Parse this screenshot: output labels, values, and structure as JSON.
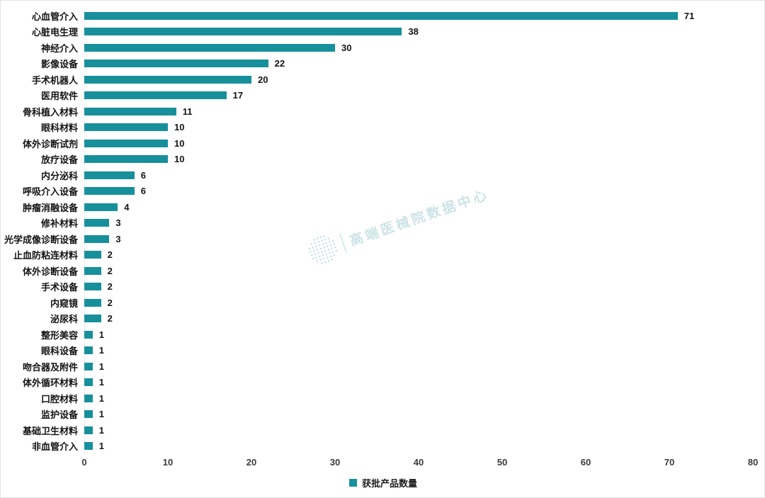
{
  "chart_data": {
    "type": "bar",
    "orientation": "horizontal",
    "title": "",
    "xlabel": "",
    "ylabel": "",
    "grid": false,
    "legend_position": "bottom",
    "xlim": [
      0,
      80
    ],
    "x_ticks": [
      0,
      10,
      20,
      30,
      40,
      50,
      60,
      70,
      80
    ],
    "series_name": "获批产品数量",
    "bar_color": "#17909b",
    "categories": [
      "心血管介入",
      "心脏电生理",
      "神经介入",
      "影像设备",
      "手术机器人",
      "医用软件",
      "骨科植入材料",
      "眼科材料",
      "体外诊断试剂",
      "放疗设备",
      "内分泌科",
      "呼吸介入设备",
      "肿瘤消融设备",
      "修补材料",
      "光学成像诊断设备",
      "止血防粘连材料",
      "体外诊断设备",
      "手术设备",
      "内窥镜",
      "泌尿科",
      "整形美容",
      "眼科设备",
      "吻合器及附件",
      "体外循环材料",
      "口腔材料",
      "监护设备",
      "基础卫生材料",
      "非血管介入"
    ],
    "values": [
      71,
      38,
      30,
      22,
      20,
      17,
      11,
      10,
      10,
      10,
      6,
      6,
      4,
      3,
      3,
      2,
      2,
      2,
      2,
      2,
      1,
      1,
      1,
      1,
      1,
      1,
      1,
      1
    ]
  },
  "legend": {
    "label": "获批产品数量",
    "swatch_color": "#17909b"
  },
  "watermark": {
    "text": "高端医械院数据中心",
    "logo": "dotted-globe"
  },
  "colors": {
    "bar": "#17909b",
    "text": "#141414",
    "tick_text": "#3a3a3a",
    "axis_line": "#ebebeb",
    "watermark": "#8fc3c9"
  }
}
